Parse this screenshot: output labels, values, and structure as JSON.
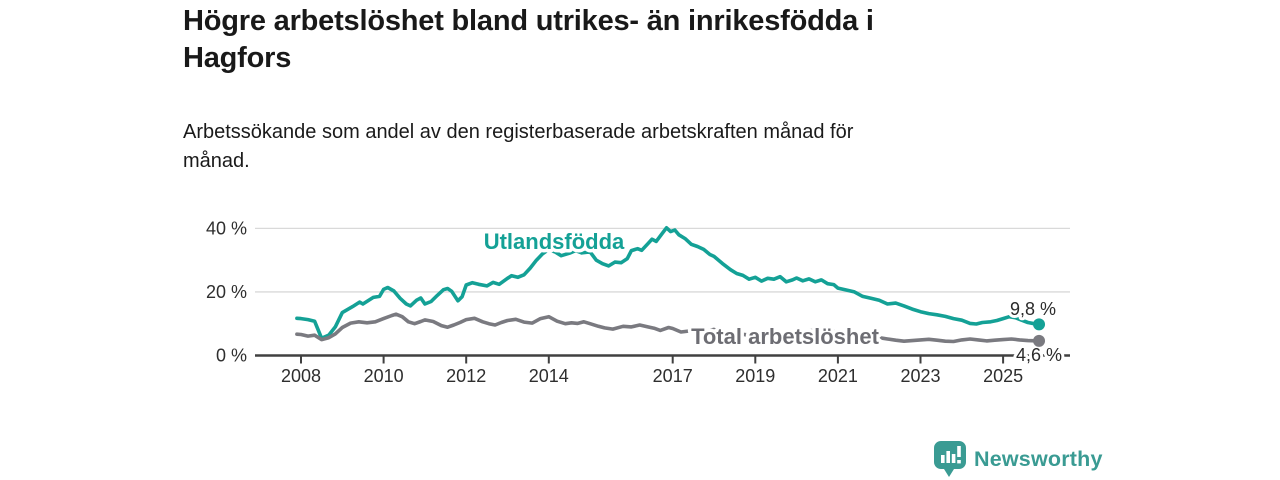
{
  "header": {
    "title_lines": [
      "Högre arbetslöshet bland utrikes- än inrikesfödda i",
      "Hagfors"
    ],
    "subtitle_lines": [
      "Arbetssökande som andel av den registerbaserade arbetskraften månad för",
      "månad."
    ]
  },
  "colors": {
    "accent_teal": "#14a196",
    "line_gray": "#7a7a80",
    "label_gray": "#6d6d73",
    "grid": "#d9d9d9",
    "axis": "#404040",
    "brand_teal": "#3a9b93"
  },
  "chart_data": {
    "type": "line",
    "unit": "%",
    "x_axis": {
      "ticks": [
        2008,
        2010,
        2012,
        2014,
        2017,
        2019,
        2021,
        2023,
        2025
      ],
      "tick_labels": [
        "2008",
        "2010",
        "2012",
        "2014",
        "2017",
        "2019",
        "2021",
        "2023",
        "2025"
      ],
      "range": [
        2007.8,
        2026.6
      ]
    },
    "y_axis": {
      "ticks": [
        0,
        20,
        40
      ],
      "tick_labels": [
        "0 %",
        "20 %",
        "40 %"
      ],
      "range": [
        0,
        42
      ],
      "grid": true
    },
    "series": [
      {
        "name": "Utlandsfödda",
        "color": "#14a196",
        "end_label": "9,8 %",
        "end_value": 9.8,
        "points": [
          [
            2007.9,
            11.7
          ],
          [
            2008.0,
            11.6
          ],
          [
            2008.17,
            11.3
          ],
          [
            2008.33,
            10.8
          ],
          [
            2008.5,
            5.4
          ],
          [
            2008.67,
            6.4
          ],
          [
            2008.83,
            9.0
          ],
          [
            2009.0,
            13.5
          ],
          [
            2009.25,
            15.4
          ],
          [
            2009.42,
            16.8
          ],
          [
            2009.5,
            16.2
          ],
          [
            2009.75,
            18.3
          ],
          [
            2009.9,
            18.6
          ],
          [
            2010.0,
            20.8
          ],
          [
            2010.1,
            21.4
          ],
          [
            2010.25,
            20.3
          ],
          [
            2010.4,
            18.0
          ],
          [
            2010.55,
            16.2
          ],
          [
            2010.65,
            15.6
          ],
          [
            2010.8,
            17.4
          ],
          [
            2010.9,
            18.1
          ],
          [
            2011.0,
            16.2
          ],
          [
            2011.15,
            17.0
          ],
          [
            2011.3,
            18.9
          ],
          [
            2011.45,
            20.7
          ],
          [
            2011.55,
            21.1
          ],
          [
            2011.65,
            20.2
          ],
          [
            2011.8,
            17.2
          ],
          [
            2011.9,
            18.5
          ],
          [
            2012.0,
            22.2
          ],
          [
            2012.15,
            22.9
          ],
          [
            2012.3,
            22.4
          ],
          [
            2012.5,
            21.9
          ],
          [
            2012.65,
            23.0
          ],
          [
            2012.8,
            22.4
          ],
          [
            2013.0,
            24.3
          ],
          [
            2013.1,
            25.1
          ],
          [
            2013.25,
            24.6
          ],
          [
            2013.4,
            25.4
          ],
          [
            2013.55,
            27.5
          ],
          [
            2013.7,
            30.0
          ],
          [
            2013.85,
            32.0
          ],
          [
            2014.0,
            33.4
          ],
          [
            2014.15,
            32.6
          ],
          [
            2014.3,
            31.4
          ],
          [
            2014.5,
            32.2
          ],
          [
            2014.65,
            33.0
          ],
          [
            2014.8,
            32.3
          ],
          [
            2015.0,
            32.6
          ],
          [
            2015.15,
            30.0
          ],
          [
            2015.3,
            28.9
          ],
          [
            2015.45,
            28.2
          ],
          [
            2015.6,
            29.4
          ],
          [
            2015.75,
            29.2
          ],
          [
            2015.9,
            30.5
          ],
          [
            2016.0,
            33.0
          ],
          [
            2016.15,
            33.6
          ],
          [
            2016.25,
            33.1
          ],
          [
            2016.4,
            35.2
          ],
          [
            2016.5,
            36.6
          ],
          [
            2016.6,
            35.9
          ],
          [
            2016.75,
            38.5
          ],
          [
            2016.85,
            40.2
          ],
          [
            2016.95,
            39.0
          ],
          [
            2017.05,
            39.5
          ],
          [
            2017.15,
            38.0
          ],
          [
            2017.3,
            36.8
          ],
          [
            2017.45,
            35.0
          ],
          [
            2017.6,
            34.3
          ],
          [
            2017.75,
            33.4
          ],
          [
            2017.9,
            31.8
          ],
          [
            2018.0,
            31.2
          ],
          [
            2018.2,
            29.0
          ],
          [
            2018.4,
            27.0
          ],
          [
            2018.55,
            25.8
          ],
          [
            2018.7,
            25.2
          ],
          [
            2018.85,
            24.0
          ],
          [
            2019.0,
            24.6
          ],
          [
            2019.15,
            23.4
          ],
          [
            2019.3,
            24.3
          ],
          [
            2019.45,
            24.0
          ],
          [
            2019.6,
            24.8
          ],
          [
            2019.75,
            23.2
          ],
          [
            2019.9,
            23.8
          ],
          [
            2020.0,
            24.4
          ],
          [
            2020.15,
            23.5
          ],
          [
            2020.3,
            24.1
          ],
          [
            2020.45,
            23.2
          ],
          [
            2020.6,
            23.8
          ],
          [
            2020.75,
            22.6
          ],
          [
            2020.9,
            22.3
          ],
          [
            2021.0,
            21.2
          ],
          [
            2021.2,
            20.6
          ],
          [
            2021.4,
            20.0
          ],
          [
            2021.6,
            18.6
          ],
          [
            2021.8,
            18.0
          ],
          [
            2022.0,
            17.4
          ],
          [
            2022.2,
            16.2
          ],
          [
            2022.4,
            16.5
          ],
          [
            2022.6,
            15.6
          ],
          [
            2022.8,
            14.6
          ],
          [
            2023.0,
            13.8
          ],
          [
            2023.2,
            13.2
          ],
          [
            2023.4,
            12.8
          ],
          [
            2023.6,
            12.3
          ],
          [
            2023.8,
            11.6
          ],
          [
            2024.0,
            11.1
          ],
          [
            2024.2,
            10.1
          ],
          [
            2024.35,
            9.9
          ],
          [
            2024.5,
            10.4
          ],
          [
            2024.7,
            10.6
          ],
          [
            2024.85,
            11.0
          ],
          [
            2025.0,
            11.6
          ],
          [
            2025.15,
            12.2
          ],
          [
            2025.3,
            11.9
          ],
          [
            2025.45,
            11.1
          ],
          [
            2025.6,
            10.4
          ],
          [
            2025.75,
            10.0
          ],
          [
            2025.87,
            9.8
          ]
        ]
      },
      {
        "name": "Total arbetslöshet",
        "color": "#7a7a80",
        "end_label": "4,6 %",
        "end_value": 4.6,
        "points": [
          [
            2007.9,
            6.7
          ],
          [
            2008.0,
            6.6
          ],
          [
            2008.17,
            6.1
          ],
          [
            2008.33,
            6.4
          ],
          [
            2008.5,
            5.0
          ],
          [
            2008.67,
            5.6
          ],
          [
            2008.83,
            6.8
          ],
          [
            2009.0,
            8.8
          ],
          [
            2009.2,
            10.2
          ],
          [
            2009.4,
            10.6
          ],
          [
            2009.6,
            10.3
          ],
          [
            2009.8,
            10.6
          ],
          [
            2010.0,
            11.6
          ],
          [
            2010.2,
            12.6
          ],
          [
            2010.3,
            13.0
          ],
          [
            2010.45,
            12.2
          ],
          [
            2010.6,
            10.6
          ],
          [
            2010.75,
            10.0
          ],
          [
            2010.9,
            10.7
          ],
          [
            2011.0,
            11.2
          ],
          [
            2011.2,
            10.7
          ],
          [
            2011.4,
            9.4
          ],
          [
            2011.55,
            8.9
          ],
          [
            2011.7,
            9.6
          ],
          [
            2011.85,
            10.4
          ],
          [
            2012.0,
            11.3
          ],
          [
            2012.2,
            11.7
          ],
          [
            2012.4,
            10.6
          ],
          [
            2012.55,
            10.0
          ],
          [
            2012.7,
            9.6
          ],
          [
            2012.85,
            10.4
          ],
          [
            2013.0,
            11.0
          ],
          [
            2013.2,
            11.4
          ],
          [
            2013.4,
            10.5
          ],
          [
            2013.6,
            10.2
          ],
          [
            2013.8,
            11.6
          ],
          [
            2014.0,
            12.2
          ],
          [
            2014.2,
            10.8
          ],
          [
            2014.4,
            10.0
          ],
          [
            2014.55,
            10.3
          ],
          [
            2014.7,
            10.1
          ],
          [
            2014.85,
            10.6
          ],
          [
            2015.0,
            10.0
          ],
          [
            2015.2,
            9.2
          ],
          [
            2015.35,
            8.7
          ],
          [
            2015.55,
            8.3
          ],
          [
            2015.8,
            9.2
          ],
          [
            2016.0,
            9.0
          ],
          [
            2016.2,
            9.6
          ],
          [
            2016.4,
            9.0
          ],
          [
            2016.55,
            8.6
          ],
          [
            2016.7,
            7.9
          ],
          [
            2016.9,
            8.8
          ],
          [
            2017.0,
            8.5
          ],
          [
            2017.2,
            7.4
          ],
          [
            2017.4,
            7.7
          ],
          [
            2017.6,
            7.9
          ],
          [
            2017.8,
            7.6
          ],
          [
            2018.0,
            8.2
          ],
          [
            2018.2,
            7.3
          ],
          [
            2018.4,
            7.0
          ],
          [
            2018.6,
            6.8
          ],
          [
            2018.8,
            6.5
          ],
          [
            2019.0,
            7.1
          ],
          [
            2019.2,
            6.7
          ],
          [
            2019.4,
            6.5
          ],
          [
            2019.6,
            6.7
          ],
          [
            2019.8,
            6.6
          ],
          [
            2020.0,
            7.0
          ],
          [
            2020.25,
            7.7
          ],
          [
            2020.5,
            8.0
          ],
          [
            2020.75,
            7.7
          ],
          [
            2021.0,
            7.4
          ],
          [
            2021.25,
            6.9
          ],
          [
            2021.5,
            6.3
          ],
          [
            2021.75,
            5.9
          ],
          [
            2022.0,
            5.6
          ],
          [
            2022.2,
            5.2
          ],
          [
            2022.4,
            4.8
          ],
          [
            2022.6,
            4.5
          ],
          [
            2022.8,
            4.7
          ],
          [
            2023.0,
            4.9
          ],
          [
            2023.2,
            5.1
          ],
          [
            2023.4,
            4.8
          ],
          [
            2023.6,
            4.5
          ],
          [
            2023.8,
            4.4
          ],
          [
            2024.0,
            4.9
          ],
          [
            2024.2,
            5.2
          ],
          [
            2024.4,
            4.9
          ],
          [
            2024.6,
            4.6
          ],
          [
            2024.8,
            4.8
          ],
          [
            2025.0,
            5.0
          ],
          [
            2025.2,
            5.2
          ],
          [
            2025.4,
            4.9
          ],
          [
            2025.6,
            4.7
          ],
          [
            2025.87,
            4.6
          ]
        ]
      }
    ]
  },
  "footer": {
    "brand": "Newsworthy"
  }
}
